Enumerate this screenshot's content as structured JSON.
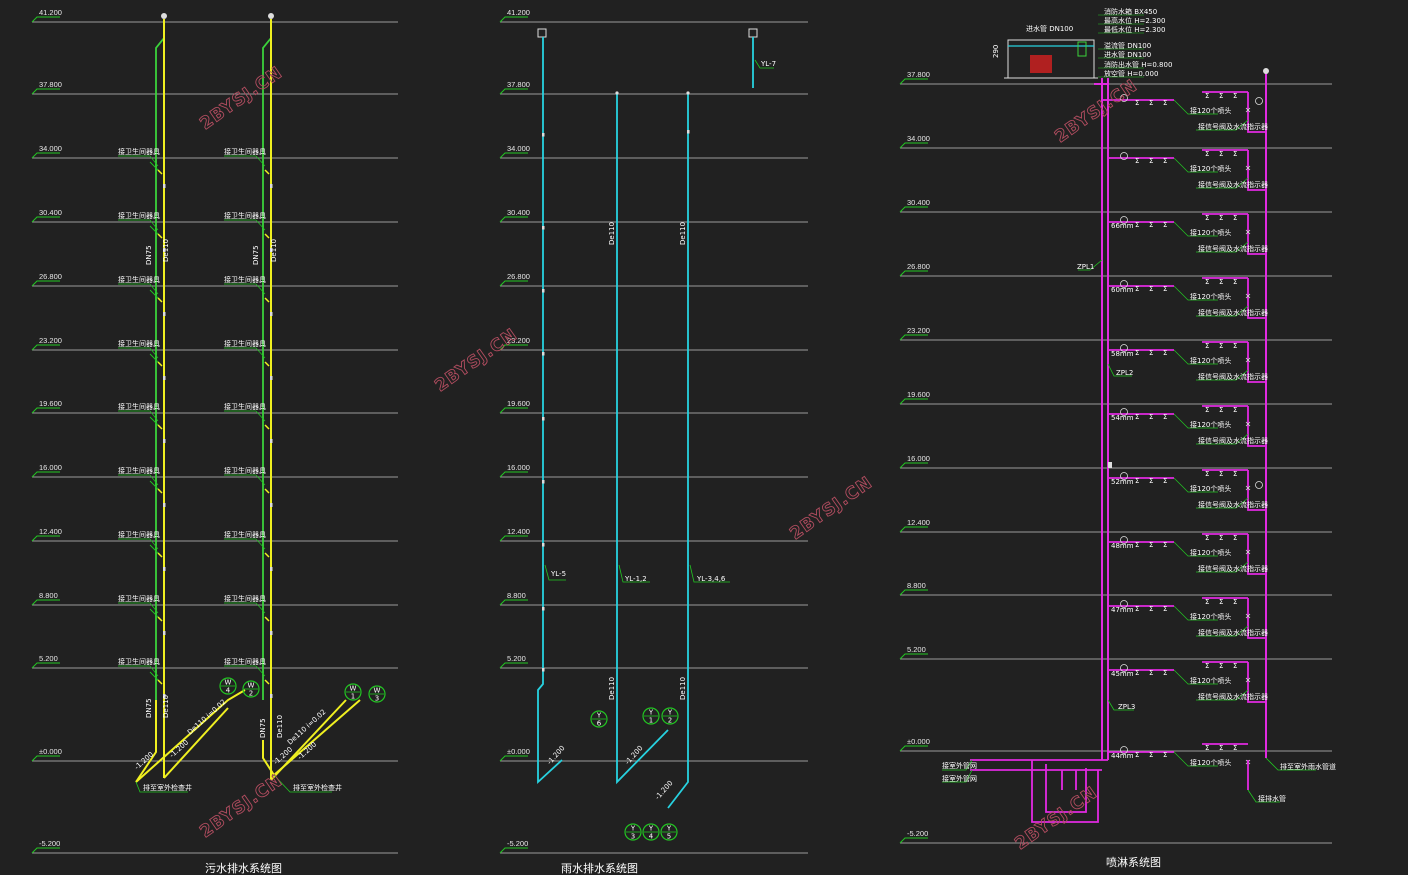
{
  "watermark": "2BYSJ.CN",
  "colors": {
    "background": "#212121",
    "floor_line": "#9a9a9a",
    "sewage": "#f0f020",
    "vent": "#3bd23b",
    "rain": "#27d2e0",
    "sprinkler": "#e12ae1",
    "leader": "#22c622",
    "text": "#ffffff",
    "watermark": "#b24d60"
  },
  "elevations": [
    "41.200",
    "37.800",
    "34.000",
    "30.400",
    "26.800",
    "23.200",
    "19.600",
    "16.000",
    "12.400",
    "8.800",
    "5.200",
    "±0.000",
    "-5.200"
  ],
  "sewage": {
    "caption": "污水排水系统图",
    "fixture_label": "接卫生间器具",
    "pipe_size_labels": [
      "DN75",
      "De110",
      "DN75",
      "De110"
    ],
    "outlet_labels": [
      "排至室外检查井",
      "排至室外检查井"
    ],
    "slope_labels": [
      "De110 i=0.02",
      "De110 i=0.02"
    ],
    "invert_labels": [
      "-1.200",
      "-1.200",
      "-1.200",
      "-1.200"
    ],
    "manholes": [
      [
        "W",
        "4"
      ],
      [
        "W",
        "2"
      ],
      [
        "W",
        "1"
      ],
      [
        "W",
        "3"
      ]
    ]
  },
  "rain": {
    "caption": "雨水排水系统图",
    "riser_labels": [
      "YL-5",
      "YL-1,2",
      "YL-3,4,6",
      "YL-7"
    ],
    "pipe_size_labels": [
      "De110",
      "De110",
      "De110",
      "De110"
    ],
    "invert_labels": [
      "-1.200",
      "-1.200",
      "-1.200"
    ],
    "inspection_wells": [
      [
        "Y",
        "6"
      ],
      [
        "Y",
        "1"
      ],
      [
        "Y",
        "2"
      ],
      [
        "Y",
        "3"
      ],
      [
        "Y",
        "4"
      ],
      [
        "Y",
        "5"
      ]
    ]
  },
  "sprinkler": {
    "caption": "喷淋系统图",
    "tank_labels": [
      "消防水箱 BX450",
      "最高水位 H=2.300",
      "最低水位 H=2.300",
      "溢流管 DN100",
      "进水管 DN100",
      "消防出水管 H=0.800",
      "放空管 H=0.000"
    ],
    "tank_dimension": "290",
    "riser_labels": [
      "ZPL1",
      "ZPL2",
      "ZPL3"
    ],
    "orifice_sizes": [
      "66mm",
      "60mm",
      "58mm",
      "54mm",
      "52mm",
      "48mm",
      "47mm",
      "45mm",
      "44mm"
    ],
    "branch_label": "接120个喷头",
    "valve_label": "接信号阀及水流指示器",
    "inlet_labels": [
      "接室外管网",
      "接室外管网"
    ],
    "drain_label": "排至室外雨水管道",
    "drain_end_label": "接排水管"
  }
}
